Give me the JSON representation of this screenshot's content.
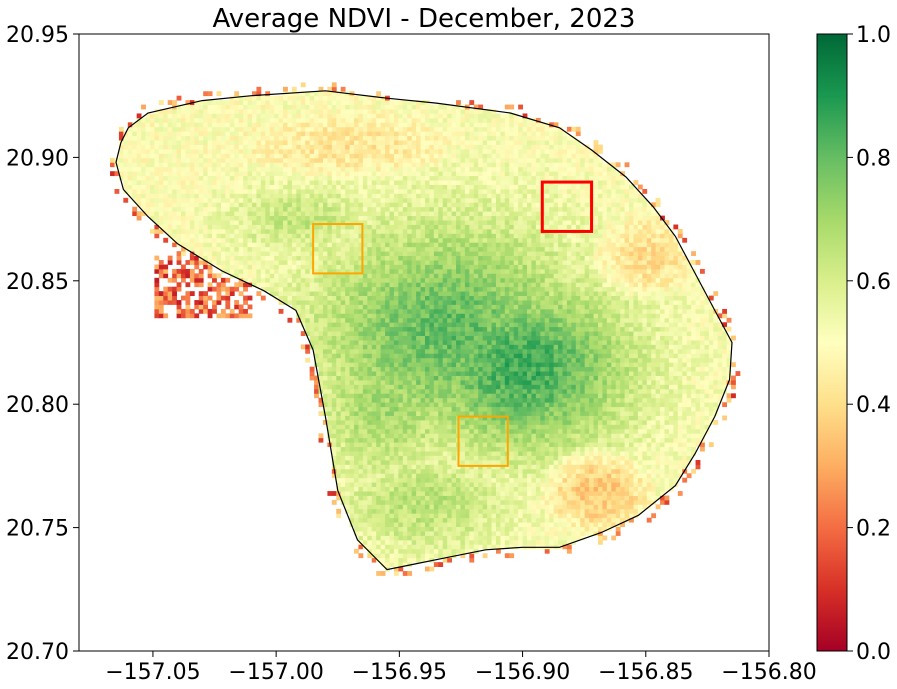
{
  "chart_data": {
    "type": "heatmap",
    "title": "Average NDVI - December, 2023",
    "xlabel": "",
    "ylabel": "",
    "xlim": [
      -157.08,
      -156.8
    ],
    "ylim": [
      20.7,
      20.95
    ],
    "x_ticks": [
      {
        "value": -157.05,
        "label": "−157.05"
      },
      {
        "value": -157.0,
        "label": "−157.00"
      },
      {
        "value": -156.95,
        "label": "−156.95"
      },
      {
        "value": -156.9,
        "label": "−156.90"
      },
      {
        "value": -156.85,
        "label": "−156.85"
      },
      {
        "value": -156.8,
        "label": "−156.80"
      }
    ],
    "y_ticks": [
      {
        "value": 20.7,
        "label": "20.70"
      },
      {
        "value": 20.75,
        "label": "20.75"
      },
      {
        "value": 20.8,
        "label": "20.80"
      },
      {
        "value": 20.85,
        "label": "20.85"
      },
      {
        "value": 20.9,
        "label": "20.90"
      },
      {
        "value": 20.95,
        "label": "20.95"
      }
    ],
    "colorbar": {
      "colormap": "RdYlGn",
      "range": [
        0.0,
        1.0
      ],
      "ticks": [
        {
          "value": 0.0,
          "label": "0.0"
        },
        {
          "value": 0.2,
          "label": "0.2"
        },
        {
          "value": 0.4,
          "label": "0.4"
        },
        {
          "value": 0.6,
          "label": "0.6"
        },
        {
          "value": 0.8,
          "label": "0.8"
        },
        {
          "value": 1.0,
          "label": "1.0"
        }
      ]
    },
    "island_outline": [
      [
        -157.06,
        20.912
      ],
      [
        -157.052,
        20.918
      ],
      [
        -157.03,
        20.923
      ],
      [
        -157.01,
        20.925
      ],
      [
        -156.98,
        20.927
      ],
      [
        -156.955,
        20.924
      ],
      [
        -156.935,
        20.922
      ],
      [
        -156.905,
        20.918
      ],
      [
        -156.885,
        20.912
      ],
      [
        -156.872,
        20.903
      ],
      [
        -156.858,
        20.892
      ],
      [
        -156.847,
        20.88
      ],
      [
        -156.838,
        20.868
      ],
      [
        -156.83,
        20.853
      ],
      [
        -156.822,
        20.838
      ],
      [
        -156.815,
        20.825
      ],
      [
        -156.816,
        20.81
      ],
      [
        -156.822,
        20.795
      ],
      [
        -156.83,
        20.78
      ],
      [
        -156.838,
        20.767
      ],
      [
        -156.853,
        20.755
      ],
      [
        -156.868,
        20.748
      ],
      [
        -156.885,
        20.742
      ],
      [
        -156.9,
        20.742
      ],
      [
        -156.915,
        20.741
      ],
      [
        -156.93,
        20.738
      ],
      [
        -156.945,
        20.735
      ],
      [
        -156.955,
        20.733
      ],
      [
        -156.967,
        20.745
      ],
      [
        -156.975,
        20.765
      ],
      [
        -156.98,
        20.795
      ],
      [
        -156.985,
        20.822
      ],
      [
        -156.992,
        20.838
      ],
      [
        -157.005,
        20.846
      ],
      [
        -157.022,
        20.854
      ],
      [
        -157.04,
        20.865
      ],
      [
        -157.052,
        20.876
      ],
      [
        -157.062,
        20.887
      ],
      [
        -157.065,
        20.898
      ],
      [
        -157.063,
        20.906
      ]
    ],
    "vegetation_zones": [
      {
        "lon": -156.93,
        "lat": 20.83,
        "r_lon": 0.055,
        "r_lat": 0.045,
        "ndvi_peak": 0.8
      },
      {
        "lon": -156.9,
        "lat": 20.815,
        "r_lon": 0.045,
        "r_lat": 0.035,
        "ndvi_peak": 0.85
      },
      {
        "lon": -156.955,
        "lat": 20.8,
        "r_lon": 0.03,
        "r_lat": 0.03,
        "ndvi_peak": 0.7
      },
      {
        "lon": -156.94,
        "lat": 20.76,
        "r_lon": 0.035,
        "r_lat": 0.02,
        "ndvi_peak": 0.66
      },
      {
        "lon": -156.99,
        "lat": 20.875,
        "r_lon": 0.03,
        "r_lat": 0.015,
        "ndvi_peak": 0.64
      }
    ],
    "dry_zones": [
      {
        "lon": -156.87,
        "lat": 20.765,
        "r_lon": 0.02,
        "r_lat": 0.015,
        "ndvi_low": 0.35
      },
      {
        "lon": -156.97,
        "lat": 20.905,
        "r_lon": 0.04,
        "r_lat": 0.012,
        "ndvi_low": 0.42
      },
      {
        "lon": -156.85,
        "lat": 20.86,
        "r_lon": 0.02,
        "r_lat": 0.015,
        "ndvi_low": 0.4
      }
    ],
    "annotation_boxes": [
      {
        "color": "#ff0000",
        "lon_min": -156.892,
        "lon_max": -156.872,
        "lat_min": 20.87,
        "lat_max": 20.89,
        "line_width": 3
      },
      {
        "color": "#ffa500",
        "lon_min": -156.985,
        "lon_max": -156.965,
        "lat_min": 20.853,
        "lat_max": 20.873,
        "line_width": 2
      },
      {
        "color": "#ffa500",
        "lon_min": -156.926,
        "lon_max": -156.906,
        "lat_min": 20.775,
        "lat_max": 20.795,
        "line_width": 2
      }
    ]
  }
}
